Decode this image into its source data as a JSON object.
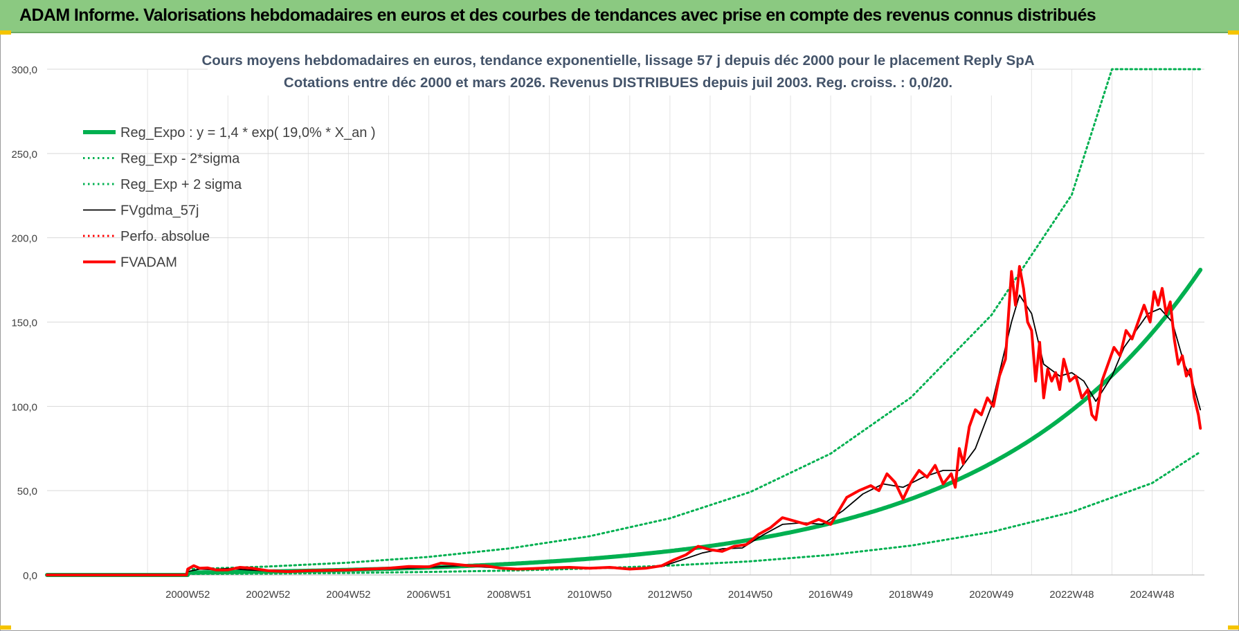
{
  "banner": {
    "title": "ADAM Informe. Valorisations hebdomadaires en euros et des courbes de tendances avec prise en compte des revenus connus distribués"
  },
  "colors": {
    "banner_bg": "#8bc981",
    "reg_green": "#00b050",
    "red": "#ff0000",
    "black": "#000000",
    "grid": "#d9d9d9",
    "title_text": "#44546a"
  },
  "chart_data": {
    "type": "line",
    "title": [
      "Cours moyens hebdomadaires en euros, tendance exponentielle, lissage 57 j depuis déc 2000 pour le placement Reply SpA",
      "Cotations entre déc 2000 et mars 2026. Revenus DISTRIBUES depuis juil 2003. Reg. croiss. : 0,0/20."
    ],
    "xlabel": "",
    "ylabel": "",
    "ylim": [
      0,
      300
    ],
    "yticks": [
      0,
      50,
      100,
      150,
      200,
      250,
      300
    ],
    "ytick_labels": [
      "0,0",
      "50,0",
      "100,0",
      "150,0",
      "200,0",
      "250,0",
      "300,0"
    ],
    "xlim": [
      1997.5,
      2026.3
    ],
    "xticks": [
      {
        "label": "2000W52",
        "x": 2001.0
      },
      {
        "label": "2002W52",
        "x": 2003.0
      },
      {
        "label": "2004W52",
        "x": 2005.0
      },
      {
        "label": "2006W51",
        "x": 2007.0
      },
      {
        "label": "2008W51",
        "x": 2009.0
      },
      {
        "label": "2010W50",
        "x": 2011.0
      },
      {
        "label": "2012W50",
        "x": 2013.0
      },
      {
        "label": "2014W50",
        "x": 2015.0
      },
      {
        "label": "2016W49",
        "x": 2017.0
      },
      {
        "label": "2018W49",
        "x": 2019.0
      },
      {
        "label": "2020W49",
        "x": 2021.0
      },
      {
        "label": "2022W48",
        "x": 2023.0
      },
      {
        "label": "2024W48",
        "x": 2025.0
      }
    ],
    "grid": true,
    "legend_position": "top-left",
    "series": [
      {
        "name": "Reg_Expo : y = 1,4 * exp( 19,0% *  X_an )",
        "style": "solid-thick",
        "color": "#00b050",
        "x": [
          1997.5,
          2001.0,
          2003,
          2005,
          2007,
          2009,
          2011,
          2013,
          2015,
          2017,
          2019,
          2021,
          2023,
          2025,
          2026.2
        ],
        "y": [
          0,
          1.4,
          2.05,
          3.0,
          4.4,
          6.4,
          9.4,
          13.7,
          20.0,
          29.3,
          42.9,
          62.7,
          91.7,
          134.1,
          181.0
        ]
      },
      {
        "name": "Reg_Exp - 2*sigma",
        "style": "dotted",
        "color": "#00b050",
        "x": [
          2001.0,
          2003,
          2005,
          2007,
          2009,
          2011,
          2013,
          2015,
          2017,
          2019,
          2021,
          2023,
          2025,
          2026.2
        ],
        "y": [
          0.6,
          0.8,
          1.2,
          1.8,
          2.6,
          3.8,
          5.6,
          8.1,
          11.9,
          17.4,
          25.5,
          37.3,
          54.5,
          73.0
        ]
      },
      {
        "name": "Reg_Exp + 2 sigma",
        "style": "dotted",
        "color": "#00b050",
        "x": [
          2001.0,
          2003,
          2005,
          2007,
          2009,
          2011,
          2013,
          2015,
          2017,
          2019,
          2021,
          2023,
          2024.0,
          2026.2
        ],
        "y": [
          3.4,
          5.0,
          7.3,
          10.7,
          15.7,
          23.0,
          33.6,
          49.2,
          72.0,
          105.3,
          154.1,
          225.5,
          300.0,
          300.0
        ]
      },
      {
        "name": "FVgdma_57j",
        "style": "solid",
        "color": "#000000",
        "x": [
          1997.5,
          2000.97,
          2001.0,
          2001.3,
          2001.6,
          2002.0,
          2002.5,
          2003.0,
          2003.5,
          2004.0,
          2005.0,
          2006.0,
          2007.0,
          2007.8,
          2008.5,
          2009.2,
          2010.0,
          2011.0,
          2012.0,
          2012.8,
          2013.3,
          2013.8,
          2014.3,
          2014.8,
          2015.3,
          2015.8,
          2016.3,
          2016.8,
          2017.3,
          2017.8,
          2018.3,
          2018.8,
          2019.3,
          2019.8,
          2020.2,
          2020.6,
          2021.0,
          2021.3,
          2021.5,
          2021.7,
          2022.0,
          2022.3,
          2022.7,
          2023.0,
          2023.3,
          2023.6,
          2024.0,
          2024.3,
          2024.6,
          2024.9,
          2025.2,
          2025.5,
          2025.8,
          2026.0,
          2026.2
        ],
        "y": [
          0,
          0,
          2.0,
          3.5,
          3.2,
          3.8,
          3.0,
          2.4,
          2.2,
          2.6,
          3.0,
          3.5,
          4.5,
          5.5,
          4.5,
          3.8,
          3.8,
          4.3,
          3.6,
          5.0,
          9.0,
          13.0,
          15.5,
          16.0,
          23.5,
          30.0,
          31.0,
          30.0,
          38.0,
          48.0,
          54.0,
          52.0,
          58.0,
          62.0,
          62.0,
          75.0,
          100.0,
          130.0,
          150.0,
          166.0,
          155.0,
          125.0,
          118.0,
          120.0,
          115.0,
          103.0,
          118.0,
          135.0,
          145.0,
          155.0,
          158.0,
          150.0,
          125.0,
          115.0,
          98.0
        ]
      },
      {
        "name": "Perfo. absolue",
        "style": "dotted",
        "color": "#ff0000",
        "x": [],
        "y": []
      },
      {
        "name": "FVADAM",
        "style": "solid-thick",
        "color": "#ff0000",
        "x": [
          1997.5,
          2000.97,
          2001.0,
          2001.15,
          2001.3,
          2001.5,
          2001.7,
          2002.0,
          2002.3,
          2002.6,
          2003.0,
          2003.5,
          2004.0,
          2004.5,
          2005.0,
          2005.5,
          2006.0,
          2006.5,
          2007.0,
          2007.3,
          2007.6,
          2008.0,
          2008.4,
          2008.8,
          2009.2,
          2009.6,
          2010.0,
          2010.5,
          2011.0,
          2011.5,
          2012.0,
          2012.4,
          2012.8,
          2013.1,
          2013.4,
          2013.7,
          2014.0,
          2014.3,
          2014.6,
          2014.9,
          2015.2,
          2015.5,
          2015.8,
          2016.1,
          2016.4,
          2016.7,
          2017.0,
          2017.2,
          2017.4,
          2017.7,
          2018.0,
          2018.2,
          2018.4,
          2018.6,
          2018.8,
          2019.0,
          2019.2,
          2019.4,
          2019.6,
          2019.8,
          2020.0,
          2020.1,
          2020.2,
          2020.3,
          2020.45,
          2020.6,
          2020.75,
          2020.9,
          2021.05,
          2021.2,
          2021.35,
          2021.5,
          2021.6,
          2021.7,
          2021.8,
          2021.9,
          2022.0,
          2022.1,
          2022.2,
          2022.3,
          2022.4,
          2022.5,
          2022.6,
          2022.7,
          2022.8,
          2022.95,
          2023.1,
          2023.25,
          2023.4,
          2023.5,
          2023.6,
          2023.75,
          2023.9,
          2024.05,
          2024.2,
          2024.35,
          2024.5,
          2024.65,
          2024.8,
          2024.95,
          2025.05,
          2025.15,
          2025.25,
          2025.35,
          2025.45,
          2025.55,
          2025.65,
          2025.75,
          2025.85,
          2025.95,
          2026.05,
          2026.15,
          2026.2
        ],
        "y": [
          0,
          0,
          3.5,
          5.5,
          4.0,
          4.2,
          3.0,
          3.0,
          4.5,
          4.0,
          2.5,
          2.0,
          2.5,
          2.7,
          3.0,
          3.5,
          4.0,
          5.0,
          4.8,
          7.0,
          6.5,
          5.5,
          5.5,
          4.0,
          3.5,
          3.8,
          4.2,
          4.5,
          4.0,
          4.5,
          3.5,
          4.0,
          5.5,
          9.0,
          12.0,
          17.0,
          15.0,
          14.0,
          17.0,
          18.0,
          24.0,
          28.0,
          34.0,
          32.0,
          30.0,
          33.0,
          30.0,
          38.0,
          46.0,
          50.0,
          53.0,
          50.0,
          60.0,
          55.0,
          45.0,
          55.0,
          62.0,
          58.0,
          65.0,
          54.0,
          60.0,
          52.0,
          75.0,
          66.0,
          88.0,
          98.0,
          95.0,
          105.0,
          100.0,
          118.0,
          128.0,
          180.0,
          160.0,
          183.0,
          170.0,
          150.0,
          145.0,
          115.0,
          138.0,
          105.0,
          122.0,
          115.0,
          120.0,
          110.0,
          128.0,
          115.0,
          118.0,
          105.0,
          110.0,
          95.0,
          92.0,
          115.0,
          125.0,
          135.0,
          130.0,
          145.0,
          140.0,
          150.0,
          160.0,
          150.0,
          168.0,
          160.0,
          170.0,
          155.0,
          162.0,
          140.0,
          125.0,
          130.0,
          118.0,
          122.0,
          105.0,
          95.0,
          87.0
        ]
      }
    ]
  }
}
